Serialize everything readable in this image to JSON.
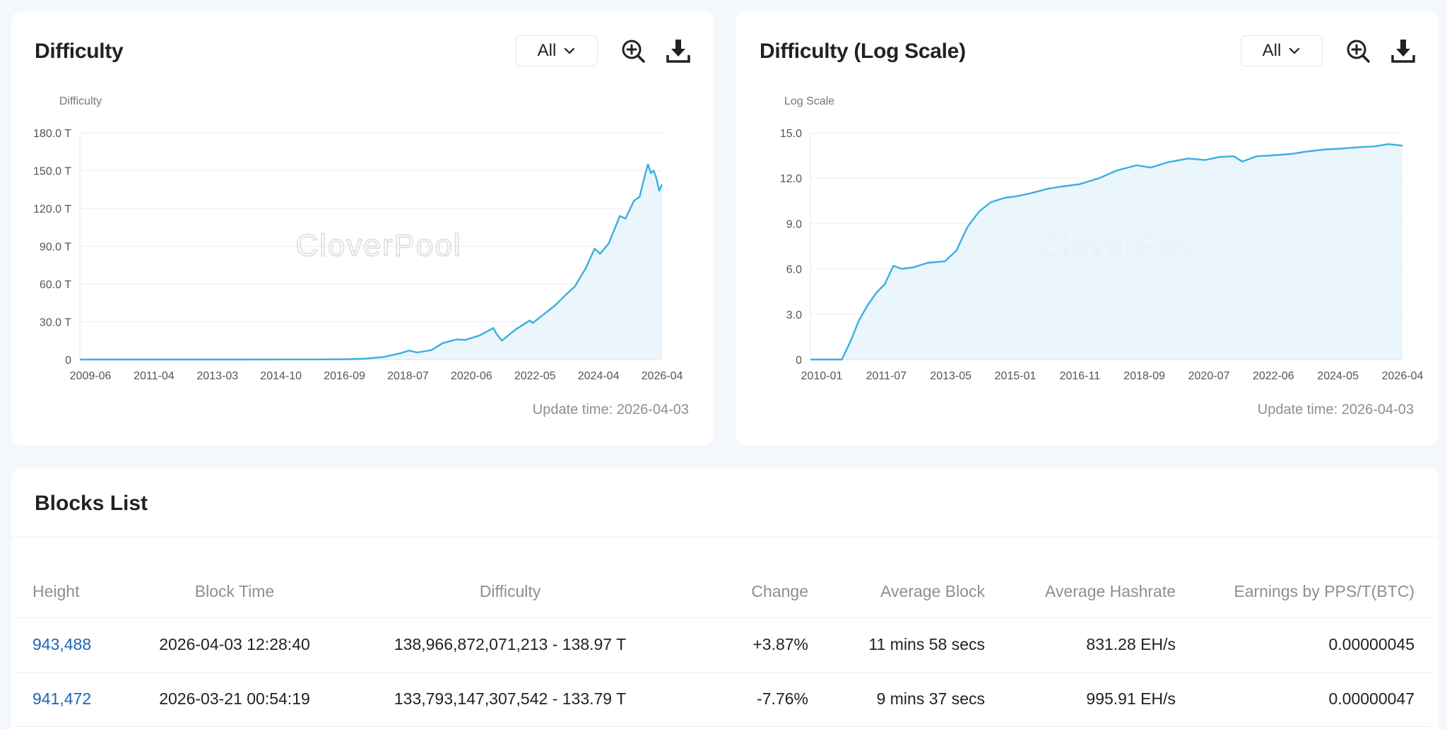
{
  "colors": {
    "line": "#3aaee3",
    "fill": "#e6f4fb",
    "grid": "#eeeeee",
    "up": "#1aa35a",
    "down": "#e0443a",
    "link": "#1f63b5"
  },
  "watermark": "CloverPool",
  "charts": [
    {
      "title": "Difficulty",
      "range_label": "All",
      "zoom_icon": "zoom-in-icon",
      "download_icon": "download-icon",
      "update_time": "Update time: 2026-04-03",
      "chart_data": {
        "type": "area",
        "ylabel": "Difficulty",
        "ylim": [
          0,
          180
        ],
        "y_ticks": [
          "0",
          "30.0 T",
          "60.0 T",
          "90.0 T",
          "120.0 T",
          "150.0 T",
          "180.0 T"
        ],
        "x_ticks": [
          "2009-06",
          "2011-04",
          "2013-03",
          "2014-10",
          "2016-09",
          "2018-07",
          "2020-06",
          "2022-05",
          "2024-04",
          "2026-04"
        ],
        "x_range": [
          "2009-01",
          "2026-04"
        ],
        "series": [
          {
            "x": [
              "2009-01",
              "2014-01",
              "2016-01",
              "2017-01",
              "2017-06",
              "2018-01",
              "2018-07",
              "2018-10",
              "2019-01",
              "2019-06",
              "2019-10",
              "2020-03",
              "2020-06",
              "2020-11",
              "2021-04",
              "2021-05",
              "2021-07",
              "2021-12",
              "2022-05",
              "2022-06",
              "2022-10",
              "2023-02",
              "2023-06",
              "2023-09",
              "2024-01",
              "2024-04",
              "2024-06",
              "2024-09",
              "2025-01",
              "2025-03",
              "2025-06",
              "2025-08",
              "2025-10",
              "2025-11",
              "2025-12",
              "2026-01",
              "2026-02",
              "2026-03",
              "2026-04"
            ],
            "y": [
              0,
              0.01,
              0.1,
              0.3,
              0.7,
              2,
              5,
              7.2,
              5.6,
              7.5,
              13,
              16,
              15.6,
              19,
              25,
              21,
              15,
              24,
              31,
              29,
              36,
              43,
              52,
              58,
              73,
              88,
              84,
              92,
              114,
              112,
              126,
              129,
              147,
              155,
              148,
              150,
              144,
              134,
              139
            ]
          }
        ]
      }
    },
    {
      "title": "Difficulty (Log Scale)",
      "range_label": "All",
      "zoom_icon": "zoom-in-icon",
      "download_icon": "download-icon",
      "update_time": "Update time: 2026-04-03",
      "chart_data": {
        "type": "area",
        "ylabel": "Log Scale",
        "ylim": [
          0,
          15
        ],
        "y_ticks": [
          "0",
          "3.0",
          "6.0",
          "9.0",
          "12.0",
          "15.0"
        ],
        "x_ticks": [
          "2010-01",
          "2011-07",
          "2013-05",
          "2015-01",
          "2016-11",
          "2018-09",
          "2020-07",
          "2022-06",
          "2024-05",
          "2026-04"
        ],
        "x_range": [
          "2009-01",
          "2026-04"
        ],
        "series": [
          {
            "x": [
              "2009-01",
              "2009-12",
              "2010-03",
              "2010-06",
              "2010-09",
              "2010-12",
              "2011-03",
              "2011-06",
              "2011-09",
              "2012-01",
              "2012-06",
              "2012-12",
              "2013-04",
              "2013-08",
              "2013-12",
              "2014-04",
              "2014-09",
              "2015-01",
              "2015-06",
              "2015-12",
              "2016-05",
              "2016-11",
              "2017-06",
              "2017-12",
              "2018-07",
              "2018-12",
              "2019-06",
              "2020-01",
              "2020-07",
              "2020-12",
              "2021-05",
              "2021-08",
              "2022-01",
              "2022-06",
              "2023-01",
              "2023-06",
              "2024-01",
              "2024-06",
              "2025-01",
              "2025-06",
              "2025-11",
              "2026-04"
            ],
            "y": [
              0,
              0,
              1.2,
              2.6,
              3.6,
              4.4,
              5.0,
              6.2,
              6.0,
              6.1,
              6.4,
              6.5,
              7.2,
              8.8,
              9.8,
              10.4,
              10.7,
              10.8,
              11.0,
              11.3,
              11.45,
              11.6,
              12.0,
              12.5,
              12.85,
              12.7,
              13.05,
              13.3,
              13.2,
              13.4,
              13.45,
              13.1,
              13.45,
              13.5,
              13.6,
              13.75,
              13.9,
              13.95,
              14.05,
              14.1,
              14.25,
              14.15
            ]
          }
        ]
      }
    }
  ],
  "blocks": {
    "title": "Blocks List",
    "columns": [
      "Height",
      "Block Time",
      "Difficulty",
      "Change",
      "Average Block",
      "Average Hashrate",
      "Earnings by PPS/T(BTC)"
    ],
    "rows": [
      {
        "height": "943,488",
        "time": "2026-04-03 12:28:40",
        "difficulty": "138,966,872,071,213 - 138.97 T",
        "change": "+3.87%",
        "change_dir": "up",
        "avg_block": "11 mins 58 secs",
        "hashrate": "831.28 EH/s",
        "earnings": "0.00000045"
      },
      {
        "height": "941,472",
        "time": "2026-03-21 00:54:19",
        "difficulty": "133,793,147,307,542 - 133.79 T",
        "change": "-7.76%",
        "change_dir": "down",
        "avg_block": "9 mins 37 secs",
        "hashrate": "995.91 EH/s",
        "earnings": "0.00000047"
      }
    ]
  }
}
